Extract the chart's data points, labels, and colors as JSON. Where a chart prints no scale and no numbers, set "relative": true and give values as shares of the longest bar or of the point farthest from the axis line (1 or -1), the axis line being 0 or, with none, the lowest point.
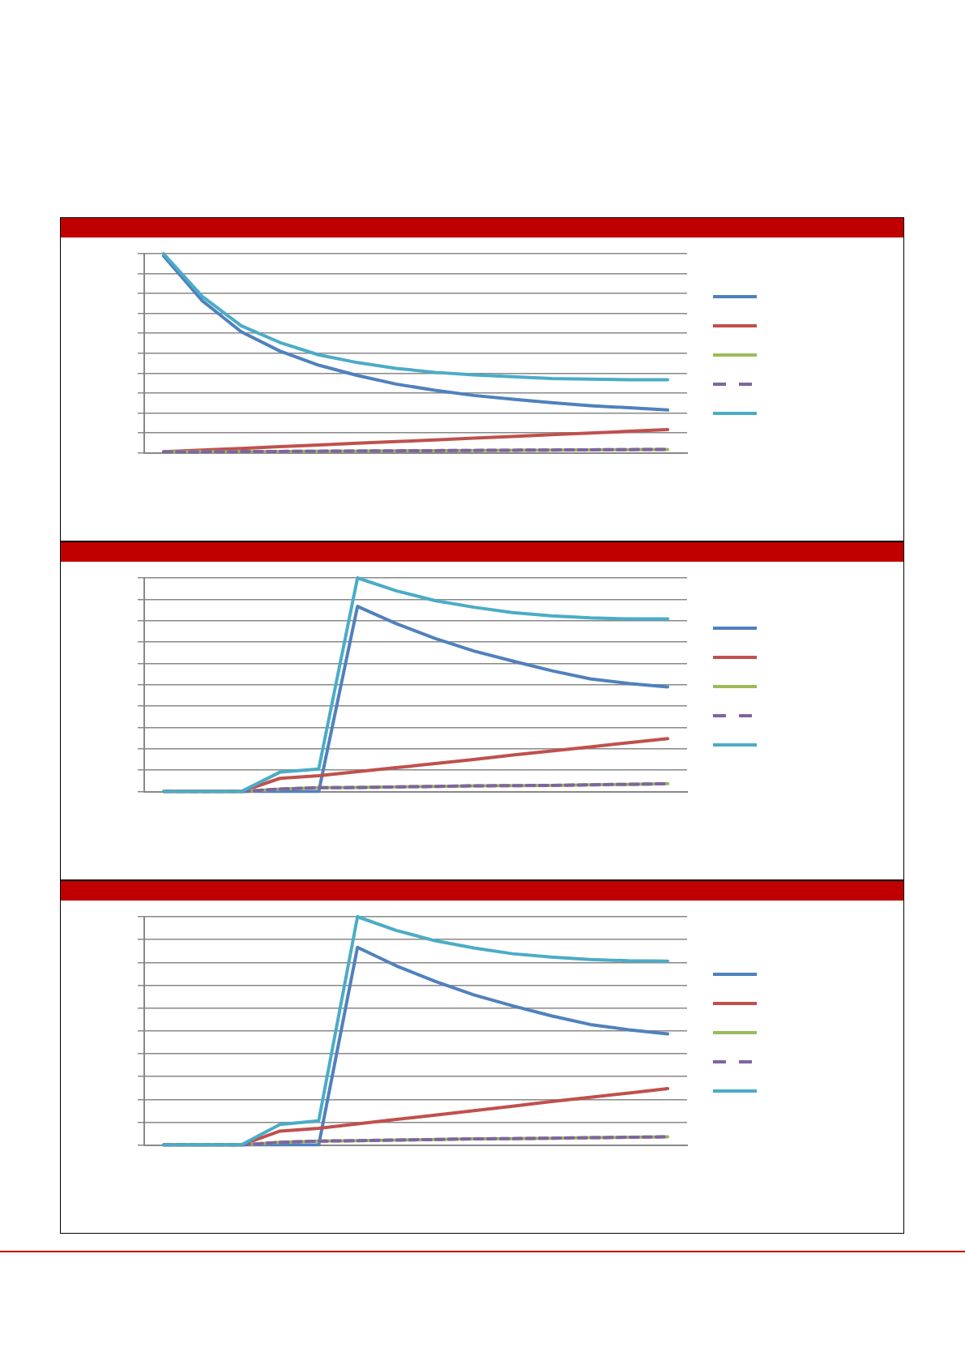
{
  "chart_data": [
    {
      "type": "line",
      "relative": true,
      "grid": "y",
      "categories": [
        null,
        null,
        null,
        null,
        null,
        null,
        null,
        null,
        null,
        null,
        null,
        null,
        null,
        null
      ],
      "series": [
        {
          "color": "#4f81bd",
          "values": [
            0.989,
            0.763,
            0.608,
            0.511,
            0.44,
            0.388,
            0.345,
            0.314,
            0.288,
            0.269,
            0.252,
            0.237,
            0.226,
            0.215
          ]
        },
        {
          "color": "#c0504d",
          "values": [
            0.005,
            0.014,
            0.022,
            0.031,
            0.039,
            0.048,
            0.056,
            0.065,
            0.074,
            0.082,
            0.091,
            0.099,
            0.108,
            0.116
          ]
        },
        {
          "color": "#9bbb59",
          "values": [
            0.004,
            0.005,
            0.006,
            0.007,
            0.008,
            0.009,
            0.01,
            0.011,
            0.012,
            0.013,
            0.014,
            0.015,
            0.016,
            0.017
          ]
        },
        {
          "color": "#8064a2",
          "line_style": "dashed",
          "values": [
            0.004,
            0.005,
            0.006,
            0.007,
            0.008,
            0.009,
            0.01,
            0.011,
            0.012,
            0.013,
            0.014,
            0.015,
            0.016,
            0.017
          ]
        },
        {
          "color": "#4bacc6",
          "values": [
            1,
            0.785,
            0.638,
            0.554,
            0.492,
            0.453,
            0.424,
            0.404,
            0.391,
            0.382,
            0.373,
            0.37,
            0.367,
            0.367
          ]
        }
      ]
    },
    {
      "type": "line",
      "relative": true,
      "grid": "y",
      "categories": [
        null,
        null,
        null,
        null,
        null,
        null,
        null,
        null,
        null,
        null,
        null,
        null,
        null,
        null
      ],
      "series": [
        {
          "color": "#4f81bd",
          "values": [
            0,
            0,
            0,
            0,
            0,
            0.867,
            0.786,
            0.717,
            0.658,
            0.611,
            0.566,
            0.528,
            0.506,
            0.49
          ]
        },
        {
          "color": "#c0504d",
          "values": [
            0,
            0,
            0,
            0.062,
            0.074,
            0.093,
            0.112,
            0.131,
            0.15,
            0.171,
            0.19,
            0.209,
            0.229,
            0.248
          ]
        },
        {
          "color": "#9bbb59",
          "values": [
            0,
            0,
            0,
            0.012,
            0.018,
            0.019,
            0.022,
            0.024,
            0.027,
            0.028,
            0.029,
            0.032,
            0.034,
            0.037
          ]
        },
        {
          "color": "#8064a2",
          "line_style": "dashed",
          "values": [
            0,
            0,
            0,
            0.012,
            0.018,
            0.019,
            0.022,
            0.024,
            0.027,
            0.028,
            0.029,
            0.032,
            0.034,
            0.037
          ]
        },
        {
          "color": "#4bacc6",
          "values": [
            0,
            0,
            0,
            0.091,
            0.106,
            1,
            0.94,
            0.894,
            0.863,
            0.838,
            0.823,
            0.813,
            0.808,
            0.808
          ]
        }
      ]
    },
    {
      "type": "line",
      "relative": true,
      "grid": "y",
      "categories": [
        null,
        null,
        null,
        null,
        null,
        null,
        null,
        null,
        null,
        null,
        null,
        null,
        null,
        null
      ],
      "series": [
        {
          "color": "#4f81bd",
          "values": [
            0,
            0,
            0,
            0,
            0,
            0.866,
            0.785,
            0.717,
            0.658,
            0.61,
            0.566,
            0.528,
            0.505,
            0.487
          ]
        },
        {
          "color": "#c0504d",
          "values": [
            0,
            0,
            0,
            0.061,
            0.073,
            0.093,
            0.112,
            0.131,
            0.15,
            0.17,
            0.19,
            0.209,
            0.228,
            0.247
          ]
        },
        {
          "color": "#9bbb59",
          "values": [
            0,
            0,
            0,
            0.012,
            0.017,
            0.019,
            0.022,
            0.024,
            0.027,
            0.028,
            0.03,
            0.032,
            0.034,
            0.036
          ]
        },
        {
          "color": "#8064a2",
          "line_style": "dashed",
          "values": [
            0,
            0,
            0,
            0.012,
            0.017,
            0.019,
            0.022,
            0.024,
            0.027,
            0.028,
            0.03,
            0.032,
            0.034,
            0.036
          ]
        },
        {
          "color": "#4bacc6",
          "values": [
            0,
            0,
            0,
            0.09,
            0.106,
            1,
            0.94,
            0.895,
            0.863,
            0.838,
            0.823,
            0.813,
            0.807,
            0.806
          ]
        }
      ]
    }
  ]
}
